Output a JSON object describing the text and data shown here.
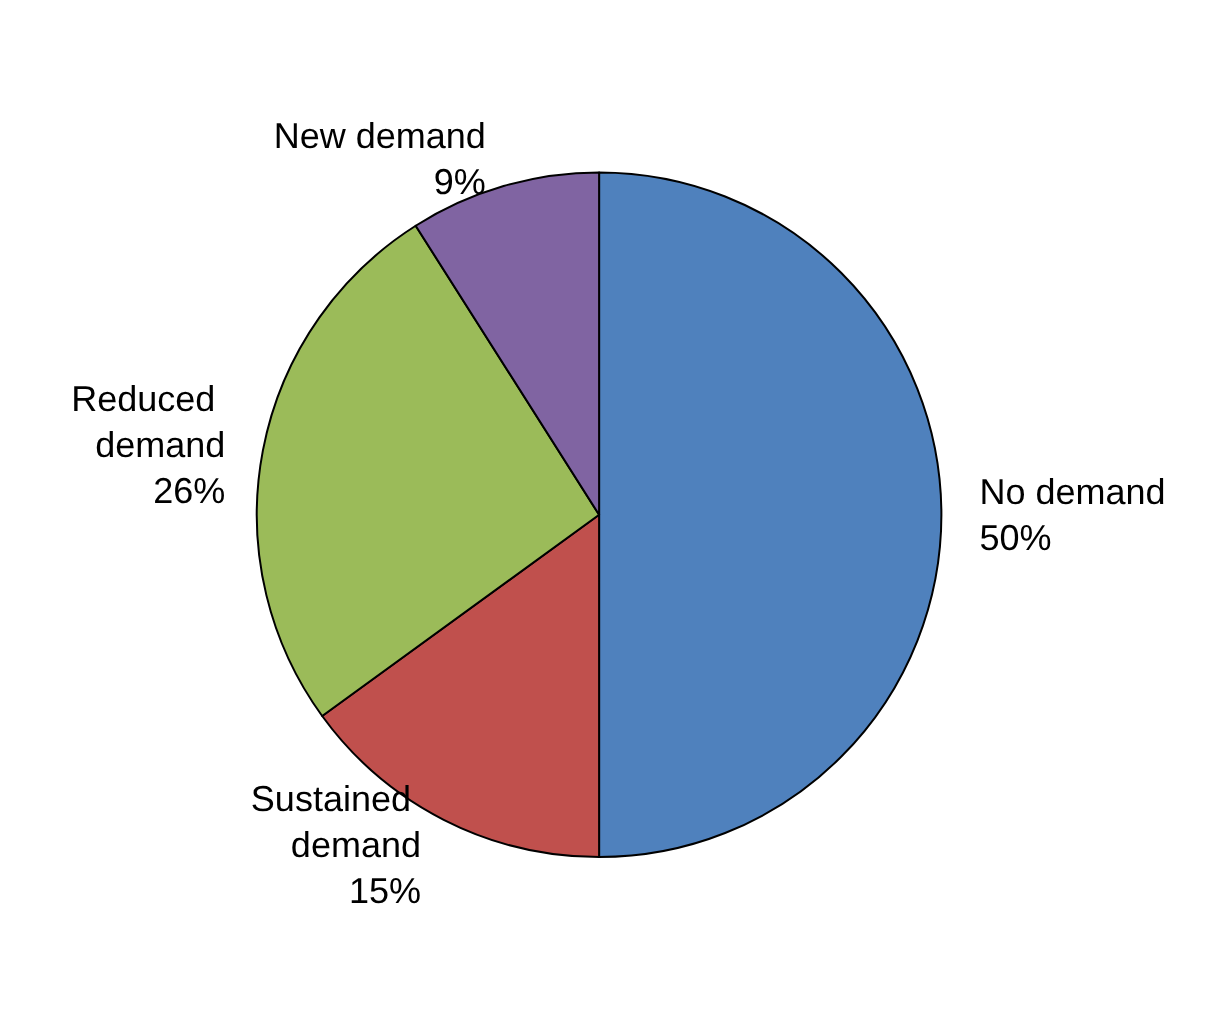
{
  "chart_data": {
    "type": "pie",
    "categories": [
      "No demand",
      "Sustained demand",
      "Reduced demand",
      "New demand"
    ],
    "values": [
      50,
      15,
      26,
      9
    ],
    "colors": [
      "#4f81bd",
      "#c0504d",
      "#9bbb59",
      "#8064a2"
    ],
    "value_labels": [
      "50%",
      "15%",
      "26%",
      "9%"
    ],
    "legend": false
  }
}
